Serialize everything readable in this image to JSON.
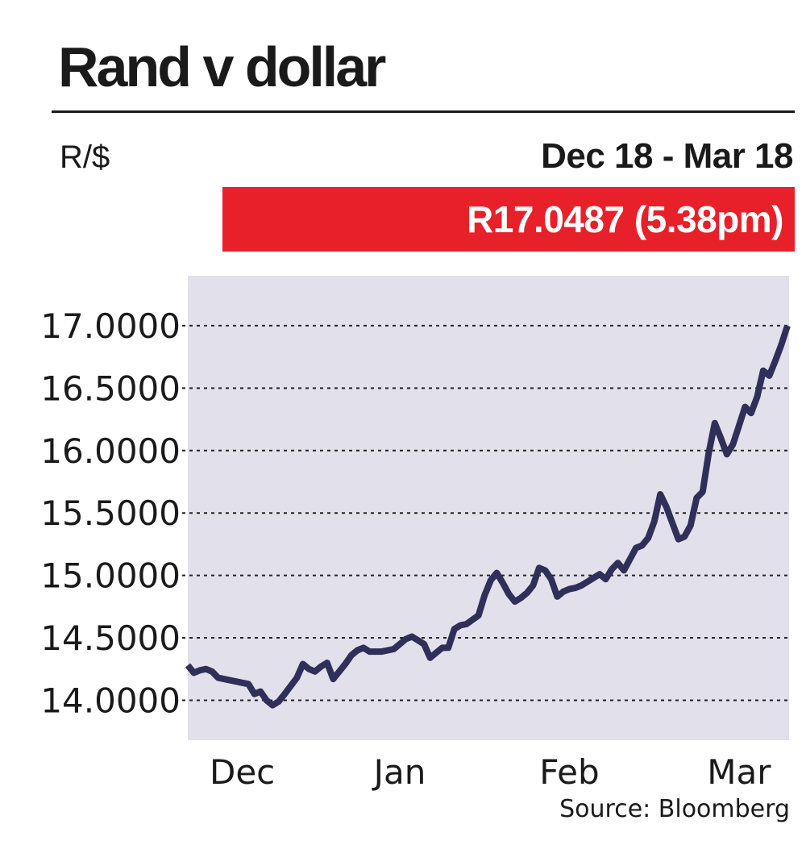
{
  "header": {
    "title": "Rand v dollar",
    "unit": "R/$",
    "period": "Dec 18 - Mar 18",
    "latest": "R17.0487 (5.38pm)"
  },
  "source": "Source: Bloomberg",
  "colors": {
    "line": "#2f2f5a",
    "plot_bg": "#e2e0ea",
    "band": "#e8202a",
    "grid": "#222222"
  },
  "chart_data": {
    "type": "line",
    "title": "Rand v dollar",
    "ylabel": "R/$",
    "xlabel": "",
    "ylim": [
      13.68,
      17.4
    ],
    "xlim": [
      0,
      99
    ],
    "grid": "horizontal dashed",
    "y_ticks": [
      {
        "value": 17.0,
        "label": "17.0000"
      },
      {
        "value": 16.5,
        "label": "16.5000"
      },
      {
        "value": 16.0,
        "label": "16.0000"
      },
      {
        "value": 15.5,
        "label": "15.5000"
      },
      {
        "value": 15.0,
        "label": "15.0000"
      },
      {
        "value": 14.5,
        "label": "14.5000"
      },
      {
        "value": 14.0,
        "label": "14.0000"
      }
    ],
    "x_ticks": [
      {
        "pos": 9,
        "label": "Dec"
      },
      {
        "pos": 35,
        "label": "Jan"
      },
      {
        "pos": 63,
        "label": "Feb"
      },
      {
        "pos": 91,
        "label": "Mar"
      }
    ],
    "series": [
      {
        "points": [
          [
            0,
            14.28
          ],
          [
            1,
            14.22
          ],
          [
            2,
            14.24
          ],
          [
            3,
            14.25
          ],
          [
            4,
            14.23
          ],
          [
            5,
            14.18
          ],
          [
            7,
            14.16
          ],
          [
            9,
            14.14
          ],
          [
            10,
            14.13
          ],
          [
            11,
            14.05
          ],
          [
            12,
            14.07
          ],
          [
            13,
            14.0
          ],
          [
            14,
            13.96
          ],
          [
            15,
            13.99
          ],
          [
            16,
            14.05
          ],
          [
            18,
            14.18
          ],
          [
            19,
            14.29
          ],
          [
            20,
            14.25
          ],
          [
            21,
            14.23
          ],
          [
            22,
            14.27
          ],
          [
            23,
            14.3
          ],
          [
            24,
            14.17
          ],
          [
            26,
            14.29
          ],
          [
            27,
            14.36
          ],
          [
            28,
            14.4
          ],
          [
            29,
            14.42
          ],
          [
            30,
            14.39
          ],
          [
            32,
            14.39
          ],
          [
            34,
            14.41
          ],
          [
            35,
            14.45
          ],
          [
            36,
            14.49
          ],
          [
            37,
            14.51
          ],
          [
            38,
            14.48
          ],
          [
            39,
            14.45
          ],
          [
            40,
            14.34
          ],
          [
            41,
            14.38
          ],
          [
            42,
            14.42
          ],
          [
            43,
            14.42
          ],
          [
            44,
            14.57
          ],
          [
            45,
            14.6
          ],
          [
            46,
            14.61
          ],
          [
            48,
            14.68
          ],
          [
            49,
            14.84
          ],
          [
            50,
            14.96
          ],
          [
            51,
            15.02
          ],
          [
            52,
            14.94
          ],
          [
            53,
            14.85
          ],
          [
            54,
            14.79
          ],
          [
            55,
            14.82
          ],
          [
            56,
            14.86
          ],
          [
            57,
            14.92
          ],
          [
            58,
            15.06
          ],
          [
            59,
            15.04
          ],
          [
            60,
            14.97
          ],
          [
            61,
            14.83
          ],
          [
            62,
            14.87
          ],
          [
            63,
            14.89
          ],
          [
            64,
            14.9
          ],
          [
            65,
            14.92
          ],
          [
            66,
            14.95
          ],
          [
            67,
            14.98
          ],
          [
            68,
            15.01
          ],
          [
            69,
            14.97
          ],
          [
            70,
            15.05
          ],
          [
            71,
            15.1
          ],
          [
            72,
            15.04
          ],
          [
            73,
            15.13
          ],
          [
            74,
            15.22
          ],
          [
            75,
            15.24
          ],
          [
            76,
            15.3
          ],
          [
            77,
            15.43
          ],
          [
            78,
            15.65
          ],
          [
            79,
            15.55
          ],
          [
            80,
            15.42
          ],
          [
            81,
            15.29
          ],
          [
            82,
            15.31
          ],
          [
            83,
            15.4
          ],
          [
            84,
            15.62
          ],
          [
            85,
            15.67
          ],
          [
            86,
            15.98
          ],
          [
            87,
            16.22
          ],
          [
            88,
            16.1
          ],
          [
            89,
            15.97
          ],
          [
            90,
            16.05
          ],
          [
            91,
            16.2
          ],
          [
            92,
            16.35
          ],
          [
            93,
            16.3
          ],
          [
            94,
            16.43
          ],
          [
            95,
            16.64
          ],
          [
            96,
            16.6
          ],
          [
            97,
            16.72
          ],
          [
            98,
            16.85
          ],
          [
            99,
            17.0
          ]
        ]
      }
    ]
  }
}
